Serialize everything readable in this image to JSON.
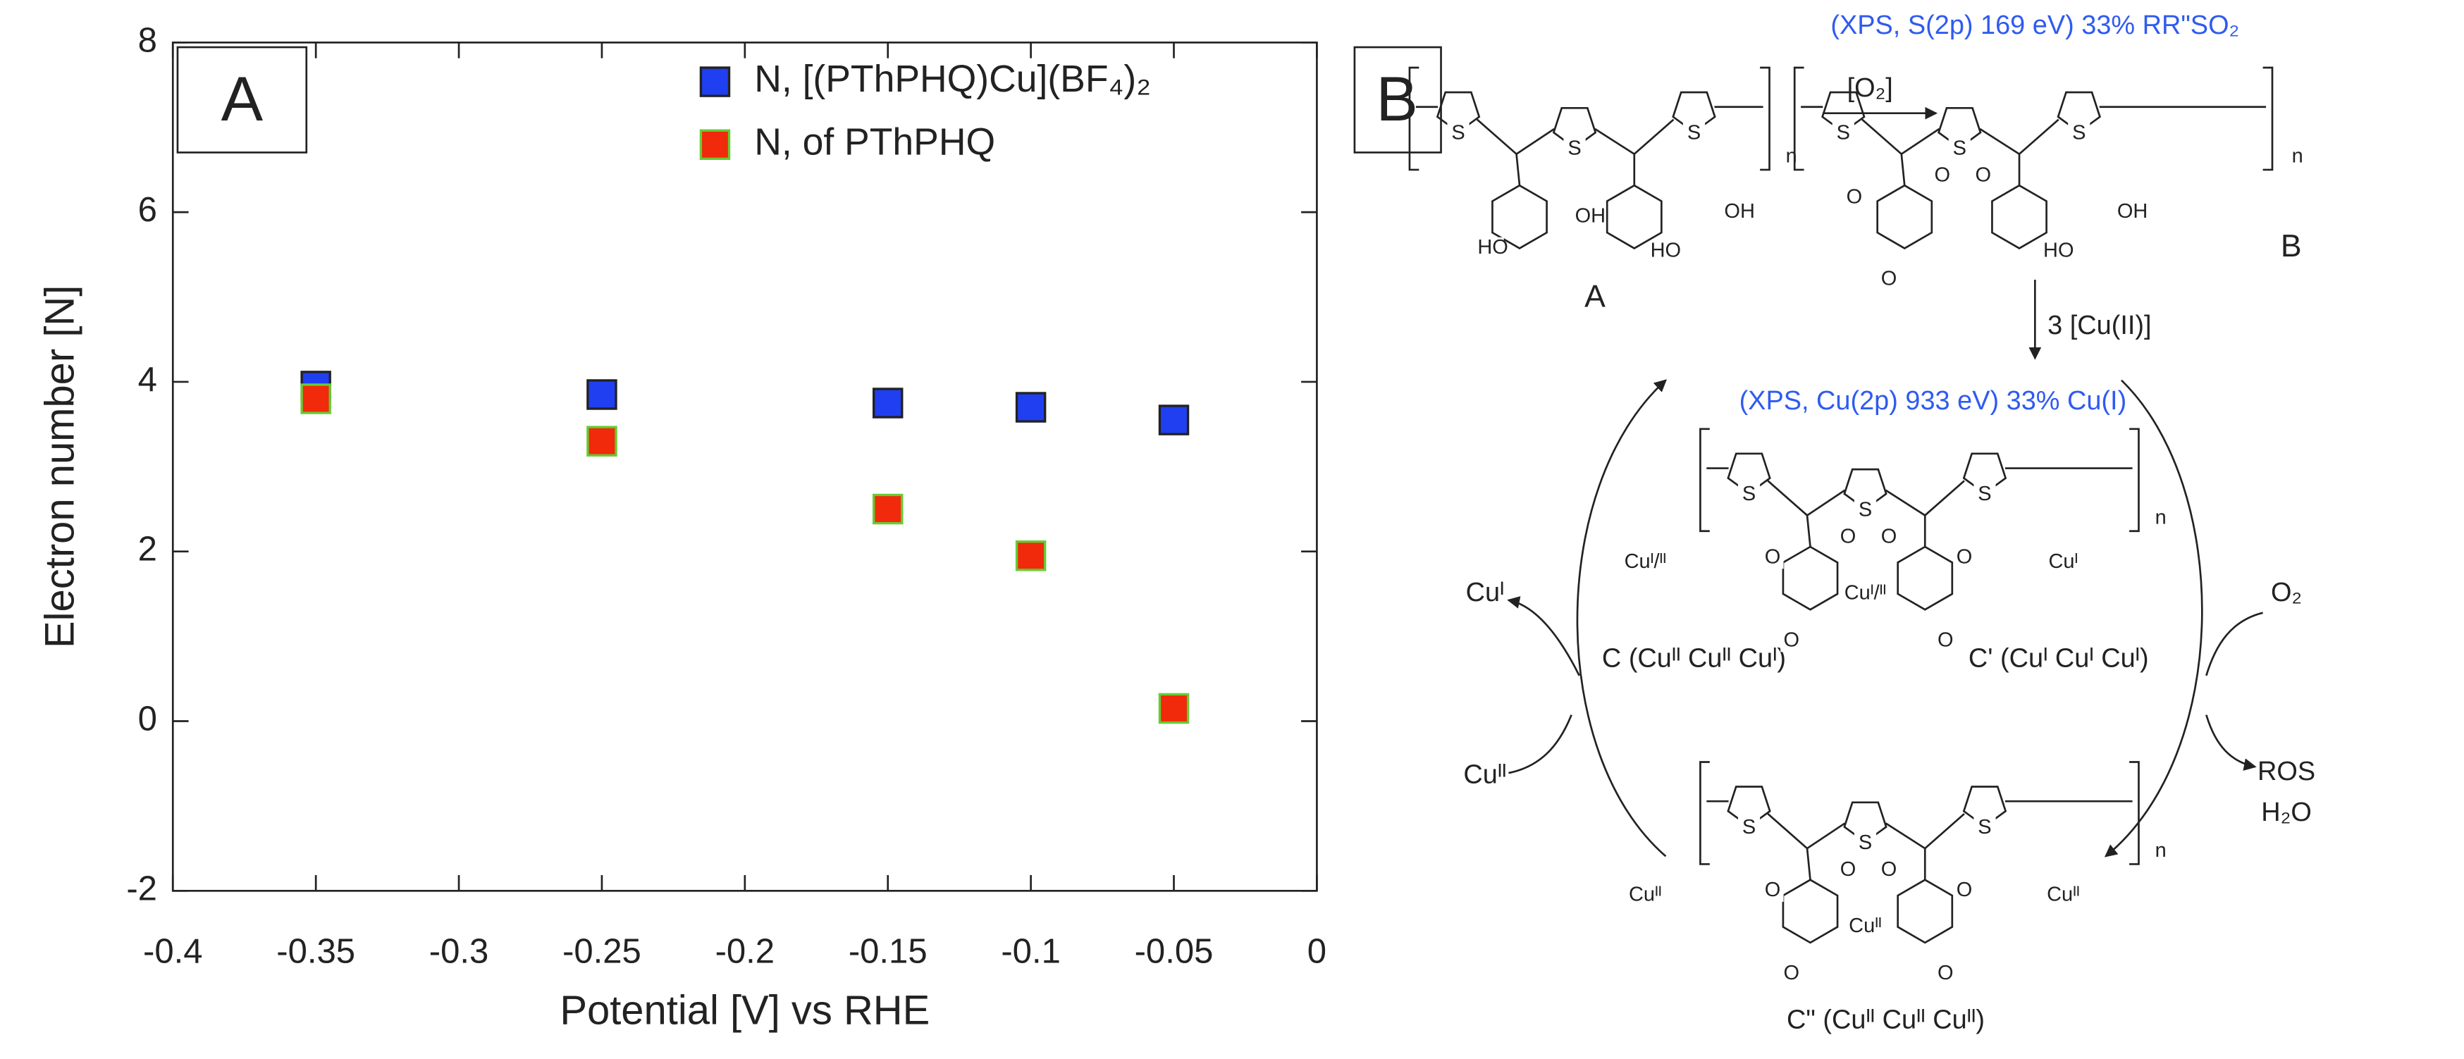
{
  "chart_data": {
    "type": "scatter",
    "panel_label": "A",
    "xlabel": "Potential [V] vs RHE",
    "ylabel": "Electron number [N]",
    "x": [
      -0.35,
      -0.25,
      -0.15,
      -0.1,
      -0.05
    ],
    "series": [
      {
        "name": "N, [(PThPHQ)Cu](BF₄)₂",
        "color": "#1f3ff0",
        "edgecolor": "#222222",
        "values": [
          3.95,
          3.85,
          3.75,
          3.7,
          3.55
        ]
      },
      {
        "name": "N, of PThPHQ",
        "color": "#f02a0a",
        "edgecolor": "#66cc33",
        "values": [
          3.8,
          3.3,
          2.5,
          1.95,
          0.15
        ]
      }
    ],
    "xlim": [
      -0.4,
      0
    ],
    "xticks": [
      -0.4,
      -0.35,
      -0.3,
      -0.25,
      -0.2,
      -0.15,
      -0.1,
      -0.05,
      0
    ],
    "ylim": [
      -2,
      8
    ],
    "yticks": [
      -2,
      0,
      2,
      4,
      6,
      8
    ],
    "legend": "upper right"
  },
  "scheme": {
    "panel_label": "B",
    "step1": "[O₂]",
    "step2": "3 [Cu(II)]",
    "xps_s": "(XPS, S(2p) 169 eV) 33% RR\"SO₂",
    "xps_cu": "(XPS, Cu(2p) 933 eV) 33% Cu(I)",
    "label_a": "A",
    "label_b": "B",
    "label_c": "C (Cuᴵᴵ Cuᴵᴵ Cuᴵ)",
    "label_c1": "C' (Cuᴵ Cuᴵ Cuᴵ)",
    "label_c2": "C\" (Cuᴵᴵ Cuᴵᴵ Cuᴵᴵ)",
    "cycle_out_left": "Cuᴵ",
    "cycle_in_left": "Cuᴵᴵ",
    "cycle_in_right": "O₂",
    "cycle_out_right": "ROS",
    "cycle_out_right2": "H₂O",
    "molecules": [
      [
        "S",
        "S",
        "S",
        "OH",
        "HO",
        "OH",
        "HO",
        "n"
      ],
      [
        "S",
        "S",
        "S",
        "O",
        "O",
        "O",
        "O",
        "OH",
        "HO",
        "n"
      ],
      [
        "S",
        "S",
        "S",
        "O",
        "O",
        "O",
        "O",
        "O",
        "O",
        "Cuᴵ/ᴵᴵ",
        "Cuᴵ/ᴵᴵ",
        "Cuᴵ",
        "n"
      ],
      [
        "S",
        "S",
        "S",
        "O",
        "O",
        "O",
        "O",
        "O",
        "O",
        "Cuᴵᴵ",
        "Cuᴵᴵ",
        "Cuᴵᴵ",
        "n"
      ]
    ]
  }
}
